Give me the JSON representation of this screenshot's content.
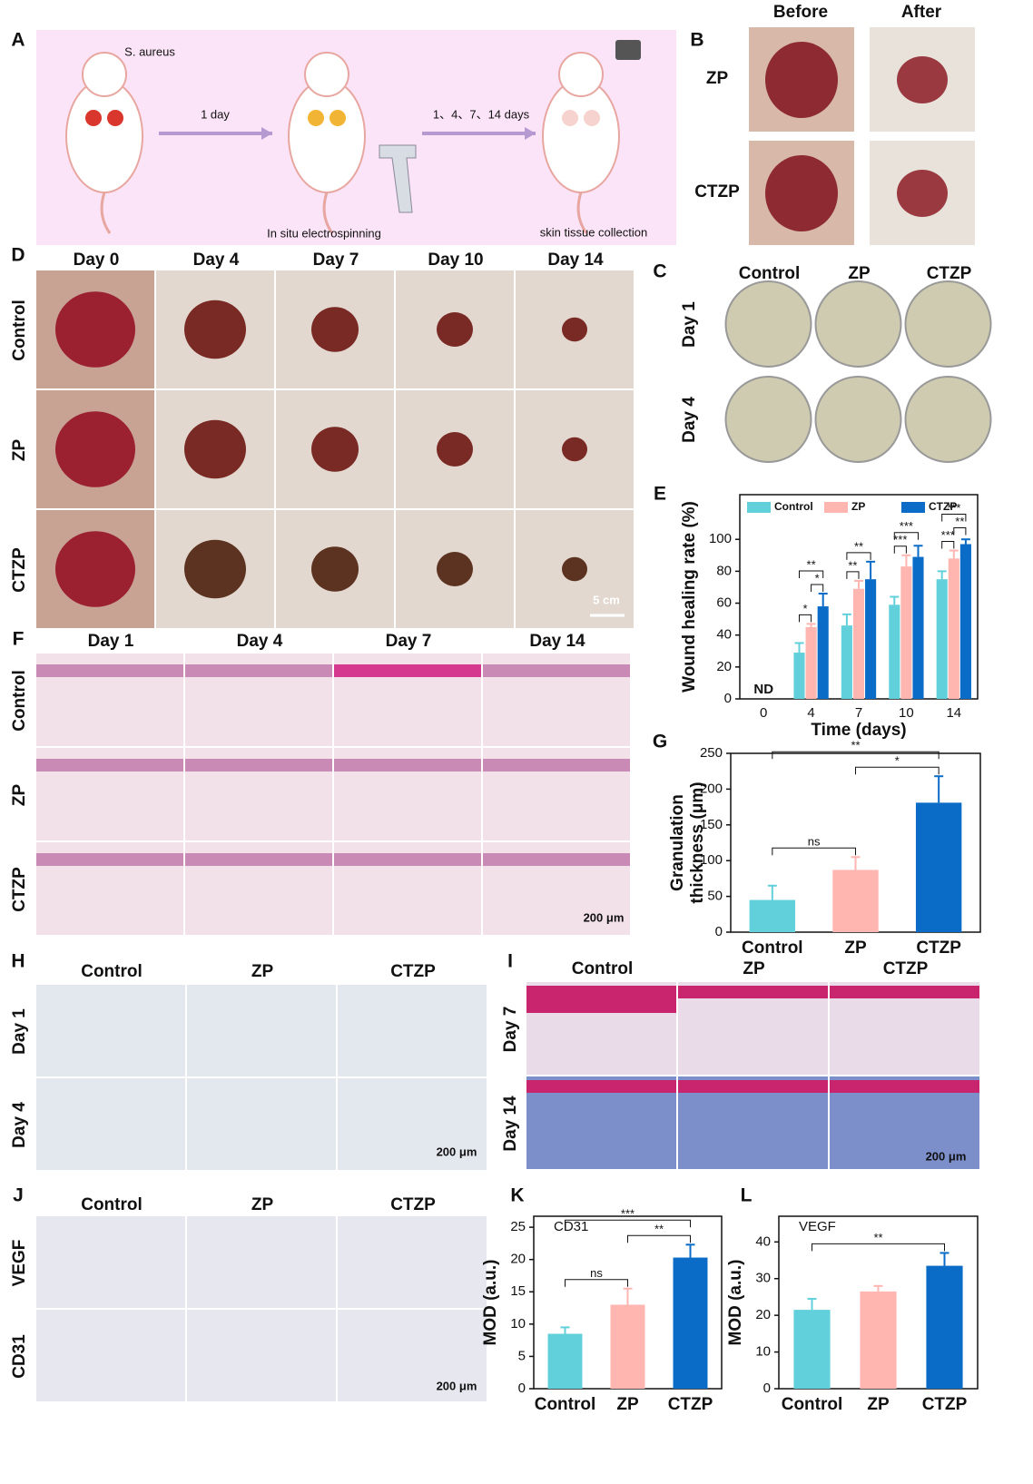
{
  "panel_labels": [
    "A",
    "B",
    "C",
    "D",
    "E",
    "F",
    "G",
    "H",
    "I",
    "J",
    "K",
    "L"
  ],
  "panel_a": {
    "bacteria": "S. aureus",
    "step1": "1 day",
    "step2": "1、4、7、14 days",
    "caption1": "In situ electrospinning",
    "caption2": "skin tissue collection"
  },
  "panel_b": {
    "columns": [
      "Before",
      "After"
    ],
    "rows": [
      "ZP",
      "CTZP"
    ]
  },
  "panel_c": {
    "columns": [
      "Control",
      "ZP",
      "CTZP"
    ],
    "rows": [
      "Day 1",
      "Day 4"
    ]
  },
  "panel_d": {
    "columns": [
      "Day 0",
      "Day 4",
      "Day 7",
      "Day 10",
      "Day 14"
    ],
    "rows": [
      "Control",
      "ZP",
      "CTZP"
    ],
    "scale_bar": "5 cm"
  },
  "panel_f": {
    "columns": [
      "Day 1",
      "Day 4",
      "Day 7",
      "Day 14"
    ],
    "rows": [
      "Control",
      "ZP",
      "CTZP"
    ],
    "scale_bar": "200 μm"
  },
  "panel_h": {
    "columns": [
      "Control",
      "ZP",
      "CTZP"
    ],
    "rows": [
      "Day 1",
      "Day 4"
    ],
    "scale_bar": "200 μm"
  },
  "panel_i": {
    "columns": [
      "Control",
      "ZP",
      "CTZP"
    ],
    "rows": [
      "Day 7",
      "Day 14"
    ],
    "scale_bar": "200 μm"
  },
  "panel_j": {
    "columns": [
      "Control",
      "ZP",
      "CTZP"
    ],
    "rows": [
      "VEGF",
      "CD31"
    ],
    "scale_bar": "200 μm"
  },
  "chart_data": [
    {
      "type": "grouped_bar",
      "xlabel": "Time (days)",
      "ylabel": [
        "Wound healing rate (%)"
      ],
      "categories": [
        "0",
        "4",
        "7",
        "10",
        "14"
      ],
      "series": [
        {
          "name": "Control",
          "color": "#62d0db",
          "values": [
            0,
            29,
            46,
            59,
            75
          ],
          "errors": [
            0,
            6,
            7,
            5,
            5
          ]
        },
        {
          "name": "ZP",
          "color": "#ffb5b0",
          "values": [
            0,
            45,
            69,
            83,
            88
          ],
          "errors": [
            0,
            2,
            5,
            7,
            5
          ]
        },
        {
          "name": "CTZP",
          "color": "#0b6cc7",
          "values": [
            0,
            58,
            75,
            89,
            97
          ],
          "errors": [
            0,
            8,
            11,
            7,
            3
          ]
        }
      ],
      "ylim": [
        0,
        128
      ],
      "yticks": [
        0,
        20,
        40,
        60,
        80,
        100
      ],
      "annotations": [
        {
          "text": "ND",
          "x": "0"
        }
      ],
      "significance": [
        {
          "x": "4",
          "pair": [
            "Control",
            "ZP"
          ],
          "label": "*"
        },
        {
          "x": "4",
          "pair": [
            "ZP",
            "CTZP"
          ],
          "label": "*"
        },
        {
          "x": "4",
          "pair": [
            "Control",
            "CTZP"
          ],
          "label": "**"
        },
        {
          "x": "7",
          "pair": [
            "Control",
            "ZP"
          ],
          "label": "**"
        },
        {
          "x": "7",
          "pair": [
            "Control",
            "CTZP"
          ],
          "label": "**"
        },
        {
          "x": "10",
          "pair": [
            "Control",
            "ZP"
          ],
          "label": "***"
        },
        {
          "x": "10",
          "pair": [
            "Control",
            "CTZP"
          ],
          "label": "***"
        },
        {
          "x": "14",
          "pair": [
            "Control",
            "ZP"
          ],
          "label": "***"
        },
        {
          "x": "14",
          "pair": [
            "ZP",
            "CTZP"
          ],
          "label": "**"
        },
        {
          "x": "14",
          "pair": [
            "Control",
            "CTZP"
          ],
          "label": "***"
        }
      ]
    },
    {
      "type": "bar",
      "ylabel": [
        "Granulation",
        "thickness (μm)"
      ],
      "categories": [
        "Control",
        "ZP",
        "CTZP"
      ],
      "values": [
        45,
        87,
        181
      ],
      "errors": [
        20,
        18,
        37
      ],
      "colors": [
        "#62d0db",
        "#ffb5b0",
        "#0b6cc7"
      ],
      "ylim": [
        0,
        250
      ],
      "yticks": [
        0,
        50,
        100,
        150,
        200,
        250
      ],
      "significance": [
        {
          "pair": [
            "Control",
            "ZP"
          ],
          "label": "ns"
        },
        {
          "pair": [
            "ZP",
            "CTZP"
          ],
          "label": "*"
        },
        {
          "pair": [
            "Control",
            "CTZP"
          ],
          "label": "**"
        }
      ]
    },
    {
      "type": "bar",
      "title": "CD31",
      "ylabel": [
        "MOD (a.u.)"
      ],
      "categories": [
        "Control",
        "ZP",
        "CTZP"
      ],
      "values": [
        8.5,
        13,
        20.3
      ],
      "errors": [
        1,
        2.5,
        2
      ],
      "colors": [
        "#62d0db",
        "#ffb5b0",
        "#0b6cc7"
      ],
      "ylim": [
        0,
        26.7
      ],
      "yticks": [
        0,
        5,
        10,
        15,
        20,
        25
      ],
      "significance": [
        {
          "pair": [
            "Control",
            "ZP"
          ],
          "label": "ns"
        },
        {
          "pair": [
            "ZP",
            "CTZP"
          ],
          "label": "**"
        },
        {
          "pair": [
            "Control",
            "CTZP"
          ],
          "label": "***"
        }
      ]
    },
    {
      "type": "bar",
      "title": "VEGF",
      "ylabel": [
        "MOD (a.u.)"
      ],
      "categories": [
        "Control",
        "ZP",
        "CTZP"
      ],
      "values": [
        21.5,
        26.5,
        33.5
      ],
      "errors": [
        3,
        1.5,
        3.5
      ],
      "colors": [
        "#62d0db",
        "#ffb5b0",
        "#0b6cc7"
      ],
      "ylim": [
        0,
        47
      ],
      "yticks": [
        0,
        10,
        20,
        30,
        40
      ],
      "significance": [
        {
          "pair": [
            "Control",
            "CTZP"
          ],
          "label": "**"
        }
      ]
    }
  ]
}
